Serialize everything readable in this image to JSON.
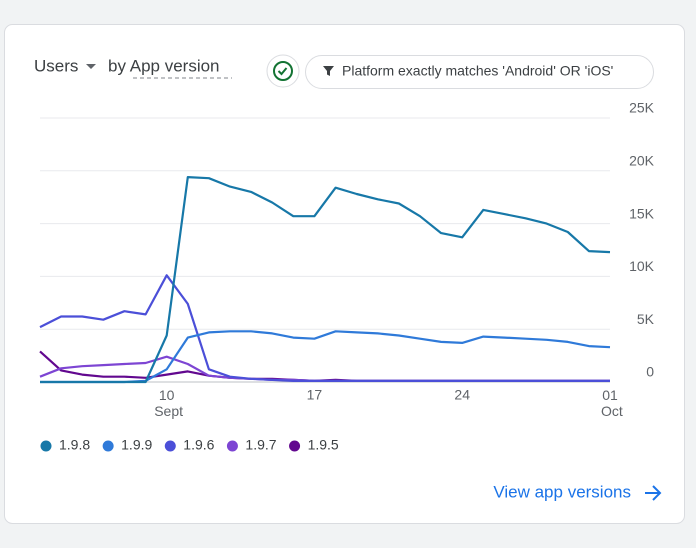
{
  "header": {
    "metric": "Users",
    "dimension": "by App version",
    "filter": "Platform exactly matches 'Android' OR 'iOS'"
  },
  "footer": {
    "link": "View app versions"
  },
  "chart_data": {
    "type": "line",
    "categories": [
      null,
      null,
      null,
      null,
      null,
      null,
      "10 Sept",
      null,
      null,
      null,
      null,
      null,
      null,
      "17",
      null,
      null,
      null,
      null,
      null,
      null,
      "24",
      null,
      null,
      null,
      null,
      null,
      null,
      "01 Oct"
    ],
    "series": [
      {
        "name": "1.9.8",
        "color": "#1778a8",
        "values": [
          0,
          0,
          0,
          0,
          0,
          0,
          4400,
          19400,
          19300,
          18500,
          18000,
          17000,
          15700,
          15700,
          18400,
          17800,
          17300,
          16900,
          15700,
          14100,
          13700,
          16300,
          15900,
          15500,
          15000,
          14200,
          12400,
          12300
        ]
      },
      {
        "name": "1.9.9",
        "color": "#2f7ad9",
        "values": [
          0,
          0,
          0,
          0,
          0,
          100,
          1200,
          4200,
          4700,
          4800,
          4800,
          4600,
          4200,
          4100,
          4800,
          4700,
          4600,
          4400,
          4100,
          3800,
          3700,
          4300,
          4200,
          4100,
          4000,
          3800,
          3400,
          3300
        ]
      },
      {
        "name": "1.9.6",
        "color": "#4b4fd8",
        "values": [
          5200,
          6200,
          6200,
          5900,
          6700,
          6400,
          10100,
          7400,
          1200,
          500,
          300,
          200,
          100,
          100,
          100,
          100,
          100,
          100,
          100,
          100,
          100,
          100,
          100,
          100,
          100,
          100,
          100,
          100
        ]
      },
      {
        "name": "1.9.7",
        "color": "#7d45d3",
        "values": [
          500,
          1300,
          1500,
          1600,
          1700,
          1800,
          2400,
          1700,
          600,
          400,
          300,
          200,
          200,
          100,
          100,
          100,
          100,
          100,
          100,
          100,
          100,
          100,
          100,
          100,
          100,
          100,
          100,
          100
        ]
      },
      {
        "name": "1.9.5",
        "color": "#62088f",
        "values": [
          2900,
          1100,
          700,
          500,
          500,
          400,
          700,
          1000,
          600,
          400,
          300,
          300,
          200,
          100,
          200,
          100,
          100,
          100,
          100,
          100,
          100,
          100,
          100,
          100,
          100,
          100,
          100,
          100
        ]
      }
    ],
    "ylim": [
      0,
      25000
    ],
    "yticks": [
      {
        "value": 0,
        "label": "0"
      },
      {
        "value": 5000,
        "label": "5K"
      },
      {
        "value": 10000,
        "label": "10K"
      },
      {
        "value": 15000,
        "label": "15K"
      },
      {
        "value": 20000,
        "label": "20K"
      },
      {
        "value": 25000,
        "label": "25K"
      }
    ],
    "grid": true
  }
}
